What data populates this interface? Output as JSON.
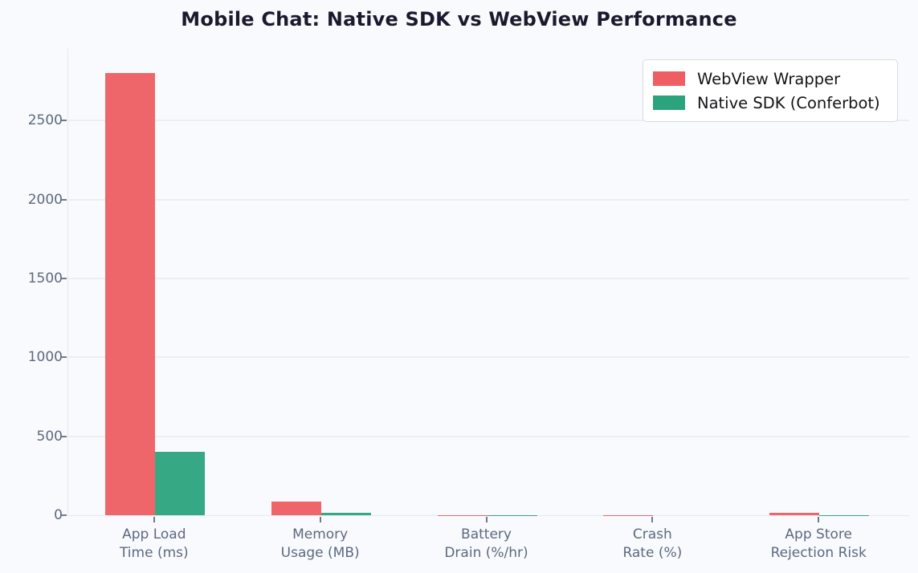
{
  "title": "Mobile Chat: Native SDK vs WebView Performance",
  "colors": {
    "background": "#f9fafd",
    "title_text": "#1a1a2e",
    "tick_text": "#5d6980",
    "gridline": "#eceef4",
    "spine": "#e5e8ef",
    "legend_border": "#d8dbe3",
    "legend_background": "#ffffff",
    "webview_red": "#ee5e62",
    "native_green": "#2ba47d"
  },
  "chart_data": {
    "type": "bar",
    "title": "Mobile Chat: Native SDK vs WebView Performance",
    "categories": [
      [
        "App Load",
        "Time (ms)"
      ],
      [
        "Memory",
        "Usage (MB)"
      ],
      [
        "Battery",
        "Drain (%/hr)"
      ],
      [
        "Crash",
        "Rate (%)"
      ],
      [
        "App Store",
        "Rejection Risk"
      ]
    ],
    "series": [
      {
        "name": "WebView Wrapper",
        "color": "#ee5e62",
        "values": [
          2800,
          85,
          2,
          1.5,
          15
        ]
      },
      {
        "name": "Native SDK (Conferbot)",
        "color": "#2ba47d",
        "values": [
          400,
          15,
          0.4,
          0.2,
          0.5
        ]
      }
    ],
    "xlabel": "",
    "ylabel": "",
    "ylim": [
      0,
      2960
    ],
    "yticks": [
      0,
      500,
      1000,
      1500,
      2000,
      2500
    ],
    "grid": "horizontal",
    "legend_position": "upper right"
  }
}
